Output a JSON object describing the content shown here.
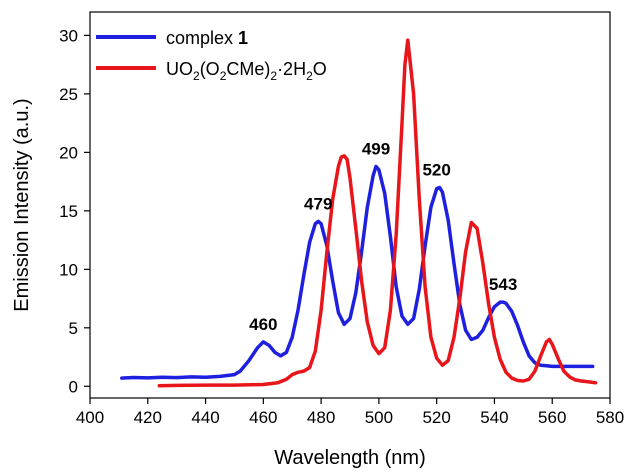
{
  "chart_data": {
    "type": "line",
    "title": "",
    "xlabel": "Wavelength (nm)",
    "ylabel": "Emission Intensity (a.u.)",
    "xlim": [
      400,
      580
    ],
    "ylim": [
      -1,
      32
    ],
    "xticks": [
      "400",
      "420",
      "440",
      "460",
      "480",
      "500",
      "520",
      "540",
      "560",
      "580"
    ],
    "yticks": [
      "0",
      "5",
      "10",
      "15",
      "20",
      "25",
      "30"
    ],
    "grid": false,
    "legend_position": "top-left",
    "series": [
      {
        "name": "complex 1",
        "color": "#1f1fe0",
        "x": [
          411,
          415,
          420,
          425,
          430,
          435,
          440,
          445,
          450,
          452,
          455,
          458,
          460,
          462,
          464,
          466,
          468,
          470,
          472,
          474,
          476,
          478,
          479,
          480,
          482,
          484,
          486,
          488,
          490,
          492,
          494,
          496,
          498,
          499,
          500,
          502,
          504,
          506,
          508,
          510,
          512,
          514,
          516,
          518,
          520,
          521,
          522,
          524,
          526,
          528,
          530,
          532,
          534,
          536,
          538,
          540,
          542,
          543,
          544,
          546,
          548,
          550,
          552,
          554,
          556,
          558,
          560,
          565,
          570,
          574
        ],
        "y": [
          0.7,
          0.75,
          0.72,
          0.78,
          0.74,
          0.8,
          0.77,
          0.85,
          1.0,
          1.3,
          2.2,
          3.3,
          3.8,
          3.5,
          2.9,
          2.6,
          2.9,
          4.2,
          6.5,
          9.5,
          12.3,
          13.9,
          14.1,
          13.9,
          12.0,
          9.0,
          6.3,
          5.3,
          5.8,
          8.0,
          11.5,
          15.3,
          18.0,
          18.8,
          18.5,
          16.5,
          12.8,
          8.5,
          6.0,
          5.3,
          5.8,
          8.3,
          12.0,
          15.3,
          16.9,
          17.0,
          16.6,
          14.2,
          10.5,
          7.0,
          4.8,
          4.0,
          4.2,
          4.8,
          5.9,
          6.8,
          7.2,
          7.2,
          7.1,
          6.4,
          5.2,
          3.8,
          2.6,
          2.0,
          1.8,
          1.75,
          1.7,
          1.7,
          1.7,
          1.7
        ]
      },
      {
        "name": "UO2(O2CMe)2·2H2O",
        "color": "#e8151b",
        "x": [
          424,
          430,
          440,
          450,
          460,
          465,
          468,
          470,
          472,
          474,
          476,
          478,
          480,
          482,
          484,
          486,
          487,
          488,
          489,
          490,
          492,
          494,
          496,
          498,
          500,
          502,
          504,
          506,
          508,
          509,
          510,
          512,
          514,
          516,
          518,
          520,
          522,
          524,
          526,
          528,
          530,
          532,
          534,
          536,
          538,
          540,
          542,
          544,
          546,
          548,
          550,
          552,
          554,
          556,
          558,
          559,
          560,
          562,
          564,
          566,
          568,
          570,
          572,
          575
        ],
        "y": [
          0.05,
          0.08,
          0.1,
          0.1,
          0.15,
          0.3,
          0.6,
          1.0,
          1.2,
          1.3,
          1.6,
          3.0,
          6.5,
          11.5,
          16.0,
          18.8,
          19.6,
          19.7,
          19.4,
          17.8,
          13.5,
          9.0,
          5.5,
          3.5,
          2.8,
          3.3,
          6.5,
          13.0,
          22.5,
          27.5,
          29.6,
          25.0,
          16.0,
          8.5,
          4.2,
          2.4,
          1.8,
          2.2,
          4.2,
          7.5,
          11.5,
          14.0,
          13.5,
          10.5,
          7.0,
          4.2,
          2.3,
          1.2,
          0.7,
          0.5,
          0.45,
          0.6,
          1.3,
          2.6,
          3.8,
          4.0,
          3.6,
          2.4,
          1.3,
          0.8,
          0.55,
          0.45,
          0.4,
          0.3
        ]
      }
    ],
    "annotations": [
      {
        "text": "460",
        "x": 460,
        "y": 3.8
      },
      {
        "text": "479",
        "x": 479,
        "y": 14.1
      },
      {
        "text": "499",
        "x": 499,
        "y": 18.8
      },
      {
        "text": "520",
        "x": 520,
        "y": 17.0
      },
      {
        "text": "543",
        "x": 543,
        "y": 7.2
      }
    ]
  },
  "legend": {
    "complex_text": "complex ",
    "complex_bold": "1",
    "uranyl_parts": [
      "UO",
      "2",
      "(O",
      "2",
      "CMe)",
      "2",
      "·2H",
      "2",
      "O"
    ]
  }
}
